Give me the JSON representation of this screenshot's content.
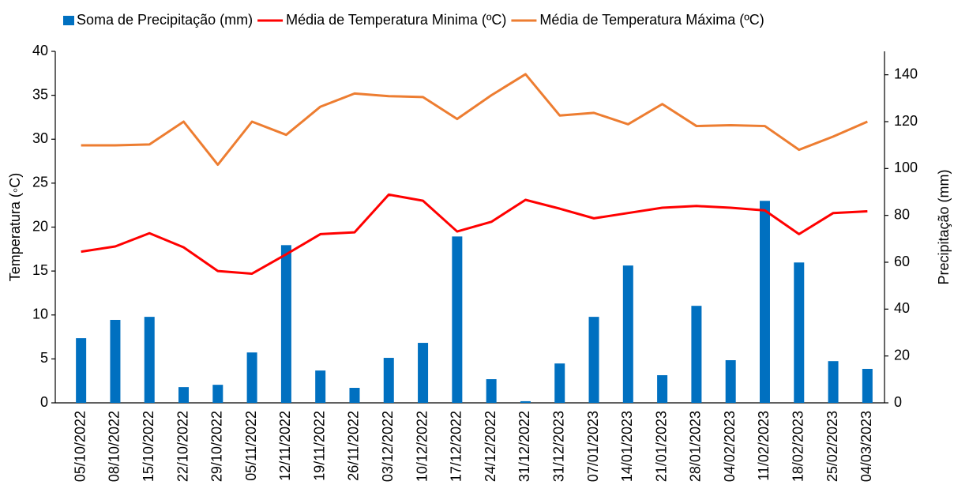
{
  "chart_data": {
    "type": "combo",
    "categories": [
      "05/10/2022",
      "08/10/2022",
      "15/10/2022",
      "22/10/2022",
      "29/10/2022",
      "05/11/2022",
      "12/11/2022",
      "19/11/2022",
      "26/11/2022",
      "03/12/2022",
      "10/12/2022",
      "17/12/2022",
      "24/12/2022",
      "31/12/2022",
      "31/12/2023",
      "07/01/2023",
      "14/01/2023",
      "21/01/2023",
      "28/01/2023",
      "04/02/2023",
      "11/02/2023",
      "18/02/2023",
      "25/02/2023",
      "04/03/2023"
    ],
    "series": [
      {
        "name": "Soma de Precipitação (mm)",
        "type": "bar",
        "axis": "y2",
        "color": "#0070c0",
        "values": [
          27.6,
          35.4,
          36.7,
          6.7,
          7.7,
          21.5,
          67.3,
          13.8,
          6.4,
          19.2,
          25.6,
          71,
          10.1,
          0.7,
          16.8,
          36.7,
          58.6,
          11.8,
          41.4,
          18.2,
          86.2,
          59.9,
          17.8,
          14.5
        ]
      },
      {
        "name": "Média de Temperatura Minima (ºC)",
        "type": "line",
        "color": "#ff0000",
        "values": [
          17.2,
          17.8,
          19.3,
          17.7,
          15,
          14.7,
          16.9,
          19.2,
          19.4,
          23.7,
          23,
          19.5,
          20.6,
          23.1,
          22.1,
          21,
          21.6,
          22.2,
          22.4,
          22.2,
          21.9,
          19.2,
          21.6,
          21.8
        ]
      },
      {
        "name": "Média de Temperatura Máxima (ºC)",
        "type": "line",
        "color": "#ed7d31",
        "values": [
          29.3,
          29.3,
          29.4,
          32,
          27.1,
          32,
          30.5,
          33.7,
          35.2,
          34.9,
          34.8,
          32.3,
          35,
          37.4,
          32.7,
          33,
          31.7,
          34,
          31.5,
          31.6,
          31.5,
          28.8,
          30.3,
          32
        ]
      }
    ],
    "y_label": "Temperatura (◦C)",
    "y2_label": "Precipitação (mm)",
    "ylim": [
      0,
      40
    ],
    "yticks": [
      0,
      5,
      10,
      15,
      20,
      25,
      30,
      35,
      40
    ],
    "y2lim": [
      0,
      150
    ],
    "y2ticks": [
      0,
      20,
      40,
      60,
      80,
      100,
      120,
      140
    ],
    "legend": "top",
    "grid": false
  }
}
